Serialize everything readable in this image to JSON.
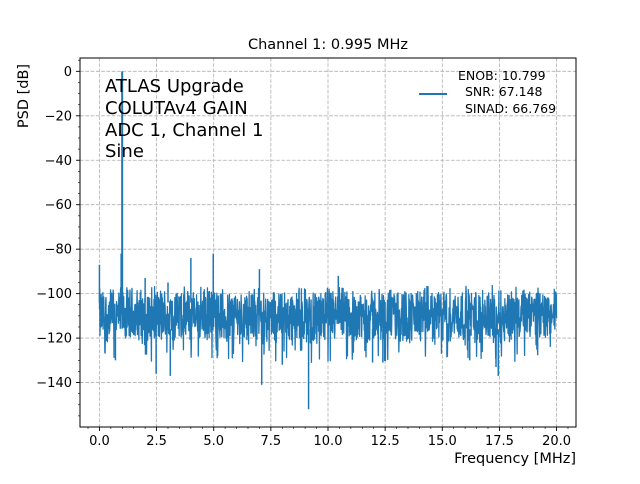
{
  "chart_data": {
    "type": "line",
    "title": "Channel 1: 0.995 MHz",
    "xlabel": "Frequency [MHz]",
    "ylabel": "PSD [dB]",
    "xlim": [
      -0.85,
      20.85
    ],
    "ylim": [
      -160,
      6
    ],
    "grid": true,
    "x_ticks": [
      0,
      2.5,
      5,
      7.5,
      10,
      12.5,
      15,
      17.5,
      20
    ],
    "x_tick_labels": [
      "0.0",
      "2.5",
      "5.0",
      "7.5",
      "10.0",
      "12.5",
      "15.0",
      "17.5",
      "20.0"
    ],
    "y_ticks": [
      0,
      -20,
      -40,
      -60,
      -80,
      -100,
      -120,
      -140
    ],
    "y_tick_labels": [
      "0",
      "−20",
      "−40",
      "−60",
      "−80",
      "−100",
      "−120",
      "−140"
    ],
    "annotation_lines": [
      "ATLAS Upgrade",
      "COLUTAv4 GAIN",
      "ADC 1, Channel 1",
      "Sine"
    ],
    "legend": {
      "location": "upper right",
      "lines": [
        "ENOB: 10.799",
        "SNR: 67.148",
        "SINAD: 66.769"
      ]
    },
    "series": [
      {
        "color": "#1f77b4",
        "x_range": [
          0,
          20
        ],
        "noise_floor_db": -110,
        "noise_band_db": [
          -125,
          -97
        ],
        "features": [
          {
            "label": "fundamental",
            "x": 0.995,
            "y": 0
          },
          {
            "label": "dc",
            "x": 0.0,
            "y": -87
          },
          {
            "label": "spur",
            "x": 0.95,
            "y": -82
          },
          {
            "label": "spur",
            "x": 4.0,
            "y": -84
          },
          {
            "label": "spur",
            "x": 4.98,
            "y": -82
          },
          {
            "label": "spur",
            "x": 2.0,
            "y": -93
          },
          {
            "label": "spur",
            "x": 7.0,
            "y": -89
          },
          {
            "label": "spur",
            "x": 3.0,
            "y": -95
          },
          {
            "label": "spur",
            "x": 10.45,
            "y": -92
          },
          {
            "label": "dip",
            "x": 9.15,
            "y": -152
          },
          {
            "label": "dip",
            "x": 7.1,
            "y": -141
          },
          {
            "label": "dip",
            "x": 2.48,
            "y": -136
          },
          {
            "label": "dip",
            "x": 3.1,
            "y": -137
          },
          {
            "label": "dip",
            "x": 0.7,
            "y": -130
          },
          {
            "label": "dip",
            "x": 17.45,
            "y": -137
          },
          {
            "label": "dip",
            "x": 17.35,
            "y": -133
          },
          {
            "label": "dip",
            "x": 11.95,
            "y": -131
          },
          {
            "label": "dip",
            "x": 12.4,
            "y": -131
          },
          {
            "label": "dip",
            "x": 8.0,
            "y": -132
          },
          {
            "label": "dip",
            "x": 16.2,
            "y": -130
          }
        ]
      }
    ]
  }
}
